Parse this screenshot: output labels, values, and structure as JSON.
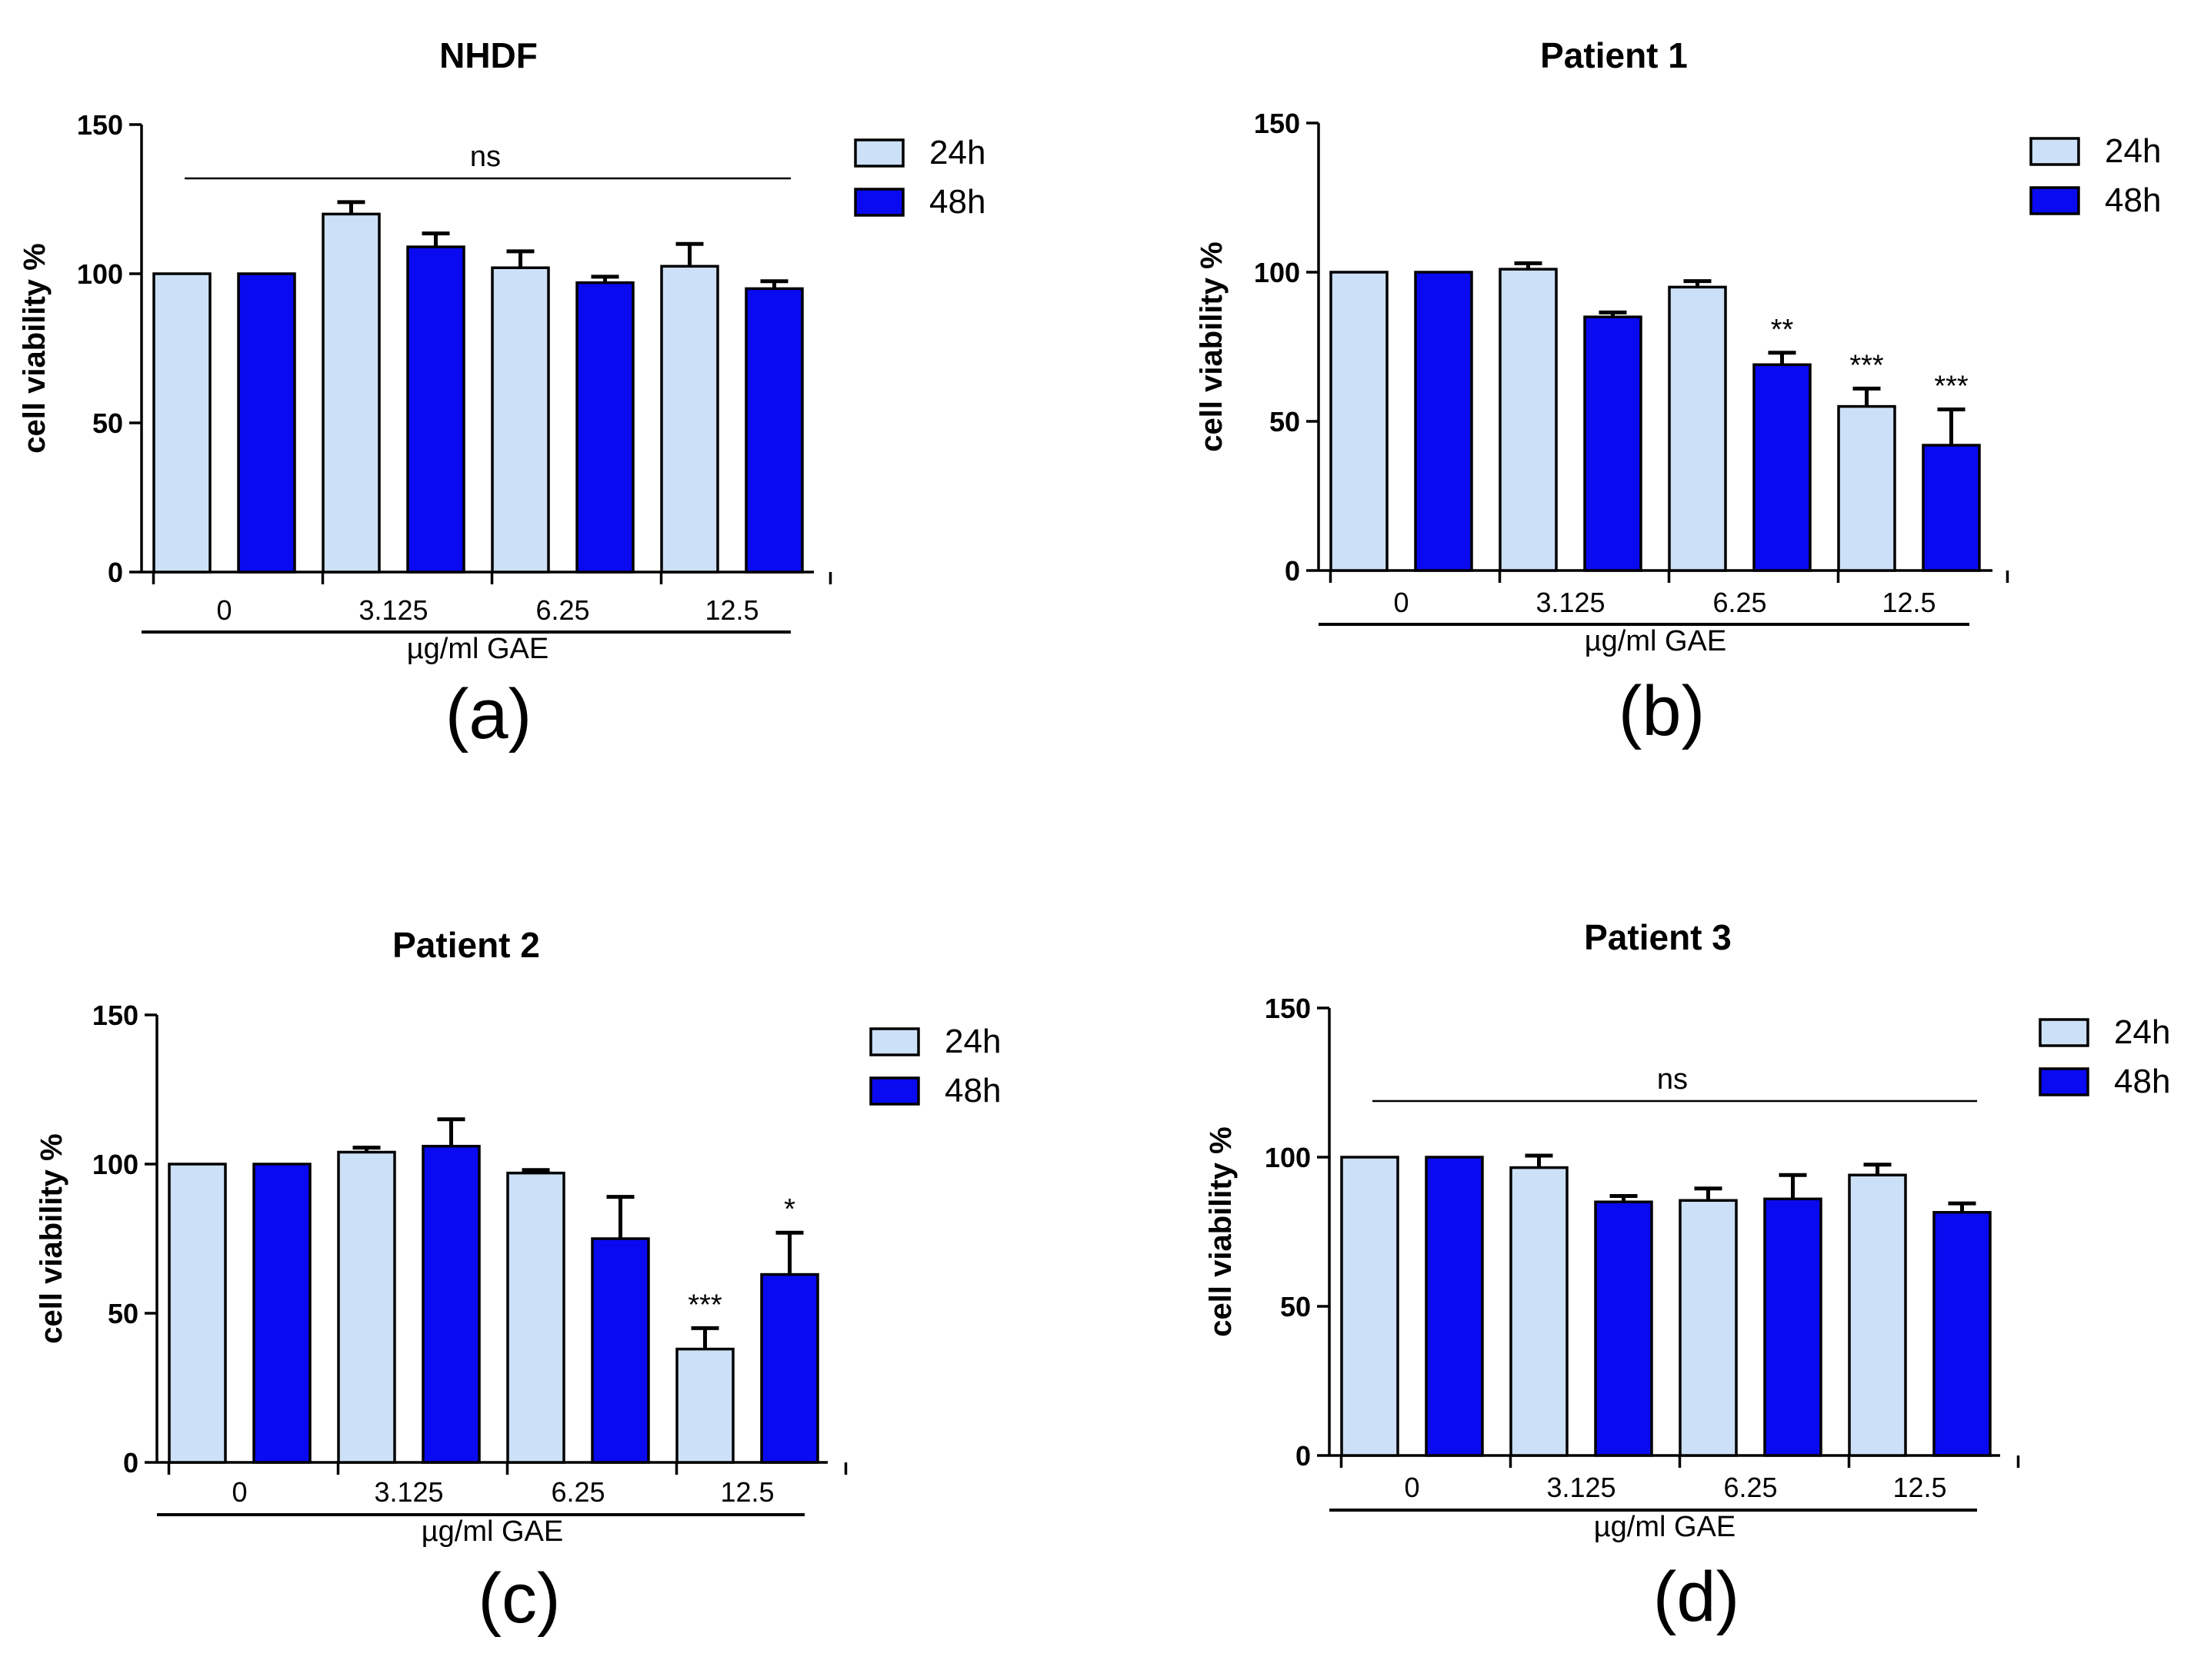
{
  "chart_data": [
    {
      "type": "bar",
      "panel_label": "(a)",
      "title": "NHDF",
      "xlabel": "µg/ml GAE",
      "ylabel": "cell viability %",
      "ylim": [
        0,
        150
      ],
      "yticks": [
        "0",
        "50",
        "100",
        "150"
      ],
      "categories": [
        "0",
        "3.125",
        "6.25",
        "12.5"
      ],
      "series": [
        {
          "name": "24h",
          "color": "#cce0f7",
          "values": [
            100,
            120,
            102,
            102.5
          ],
          "errors": [
            0,
            4,
            5.5,
            7.5
          ]
        },
        {
          "name": "48h",
          "color": "#0a0af0",
          "values": [
            100,
            109,
            97,
            95
          ],
          "errors": [
            0,
            4.5,
            2,
            2.5
          ]
        }
      ],
      "bar_labels": {
        "24h": [
          "",
          "",
          "",
          ""
        ],
        "48h": [
          "",
          "",
          "",
          ""
        ]
      },
      "overall_annotation": "ns",
      "legend": "top-right"
    },
    {
      "type": "bar",
      "panel_label": "(b)",
      "title": "Patient 1",
      "xlabel": "µg/ml GAE",
      "ylabel": "cell viability %",
      "ylim": [
        0,
        150
      ],
      "yticks": [
        "0",
        "50",
        "100",
        "150"
      ],
      "categories": [
        "0",
        "3.125",
        "6.25",
        "12.5"
      ],
      "series": [
        {
          "name": "24h",
          "color": "#cce0f7",
          "values": [
            100,
            101,
            95,
            55
          ],
          "errors": [
            0,
            2,
            2,
            6
          ]
        },
        {
          "name": "48h",
          "color": "#0a0af0",
          "values": [
            100,
            85,
            69,
            42
          ],
          "errors": [
            0,
            1.5,
            4,
            12
          ]
        }
      ],
      "bar_labels": {
        "24h": [
          "",
          "",
          "",
          "***"
        ],
        "48h": [
          "",
          "",
          "**",
          "***"
        ]
      },
      "overall_annotation": "",
      "legend": "top-right"
    },
    {
      "type": "bar",
      "panel_label": "(c)",
      "title": "Patient 2",
      "xlabel": "µg/ml GAE",
      "ylabel": "cell viability %",
      "ylim": [
        0,
        150
      ],
      "yticks": [
        "0",
        "50",
        "100",
        "150"
      ],
      "categories": [
        "0",
        "3.125",
        "6.25",
        "12.5"
      ],
      "series": [
        {
          "name": "24h",
          "color": "#cce0f7",
          "values": [
            100,
            104,
            97,
            38
          ],
          "errors": [
            0,
            1.5,
            1,
            7
          ]
        },
        {
          "name": "48h",
          "color": "#0a0af0",
          "values": [
            100,
            106,
            75,
            63
          ],
          "errors": [
            0,
            9,
            14,
            14
          ]
        }
      ],
      "bar_labels": {
        "24h": [
          "",
          "",
          "",
          "***"
        ],
        "48h": [
          "",
          "",
          "",
          "*"
        ]
      },
      "overall_annotation": "",
      "legend": "top-right"
    },
    {
      "type": "bar",
      "panel_label": "(d)",
      "title": "Patient 3",
      "xlabel": "µg/ml GAE",
      "ylabel": "cell viability %",
      "ylim": [
        0,
        150
      ],
      "yticks": [
        "0",
        "50",
        "100",
        "150"
      ],
      "categories": [
        "0",
        "3.125",
        "6.25",
        "12.5"
      ],
      "series": [
        {
          "name": "24h",
          "color": "#cce0f7",
          "values": [
            100,
            96.5,
            85.5,
            94
          ],
          "errors": [
            0,
            4,
            4,
            3.5
          ]
        },
        {
          "name": "48h",
          "color": "#0a0af0",
          "values": [
            100,
            85,
            86,
            81.5
          ],
          "errors": [
            0,
            2,
            8,
            3
          ]
        }
      ],
      "bar_labels": {
        "24h": [
          "",
          "",
          "",
          ""
        ],
        "48h": [
          "",
          "",
          "",
          ""
        ]
      },
      "overall_annotation": "ns",
      "legend": "top-right"
    }
  ]
}
